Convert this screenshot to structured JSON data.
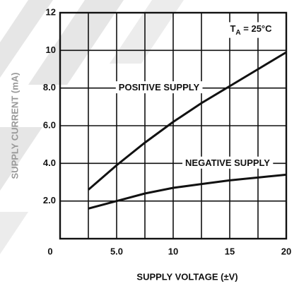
{
  "chart_data": {
    "type": "line",
    "xlabel": "SUPPLY VOLTAGE (±V)",
    "ylabel": "SUPPLY CURRENT (mA)",
    "x": [
      2.5,
      5,
      7.5,
      10,
      12.5,
      15,
      17.5,
      20
    ],
    "series": [
      {
        "name": "POSITIVE SUPPLY",
        "color": "#111111",
        "values": [
          2.6,
          3.9,
          5.1,
          6.2,
          7.2,
          8.1,
          9.0,
          9.9
        ]
      },
      {
        "name": "NEGATIVE SUPPLY",
        "color": "#111111",
        "values": [
          1.6,
          2.0,
          2.4,
          2.7,
          2.9,
          3.1,
          3.25,
          3.4
        ]
      }
    ],
    "annotation": {
      "base": "T",
      "sub": "A",
      "rest": " = 25°C"
    },
    "xlim": [
      0,
      20
    ],
    "xticks": [
      0,
      {
        "value": 5,
        "label": "5.0"
      },
      10,
      15,
      20
    ],
    "ylim": [
      0,
      12
    ],
    "yticks": [
      {
        "value": 2,
        "label": "2.0"
      },
      {
        "value": 4,
        "label": "4.0"
      },
      {
        "value": 6,
        "label": "6.0"
      },
      {
        "value": 8,
        "label": "8.0"
      },
      10,
      12
    ],
    "grid": true
  }
}
